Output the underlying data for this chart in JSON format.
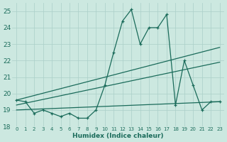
{
  "xlabel": "Humidex (Indice chaleur)",
  "x": [
    0,
    1,
    2,
    3,
    4,
    5,
    6,
    7,
    8,
    9,
    10,
    11,
    12,
    13,
    14,
    15,
    16,
    17,
    18,
    19,
    20,
    21,
    22,
    23
  ],
  "y_main": [
    19.6,
    19.5,
    18.8,
    19.0,
    18.8,
    18.6,
    18.8,
    18.5,
    18.5,
    19.0,
    20.5,
    22.5,
    24.4,
    25.1,
    23.0,
    24.0,
    24.0,
    24.8,
    19.3,
    22.0,
    20.5,
    19.0,
    19.5,
    19.5
  ],
  "ylim": [
    18,
    25.5
  ],
  "xlim": [
    -0.5,
    23.5
  ],
  "bg_color": "#cce8e0",
  "line_color": "#1a6b5a",
  "grid_color": "#aacfc8",
  "tick_color": "#1a6b5a",
  "yticks": [
    18,
    19,
    20,
    21,
    22,
    23,
    24,
    25
  ],
  "xticks": [
    0,
    1,
    2,
    3,
    4,
    5,
    6,
    7,
    8,
    9,
    10,
    11,
    12,
    13,
    14,
    15,
    16,
    17,
    18,
    19,
    20,
    21,
    22,
    23
  ],
  "trend1_x": [
    0,
    23
  ],
  "trend1_y": [
    19.6,
    22.8
  ],
  "trend2_x": [
    0,
    23
  ],
  "trend2_y": [
    19.3,
    21.9
  ],
  "trend3_x": [
    0,
    23
  ],
  "trend3_y": [
    19.0,
    19.5
  ]
}
